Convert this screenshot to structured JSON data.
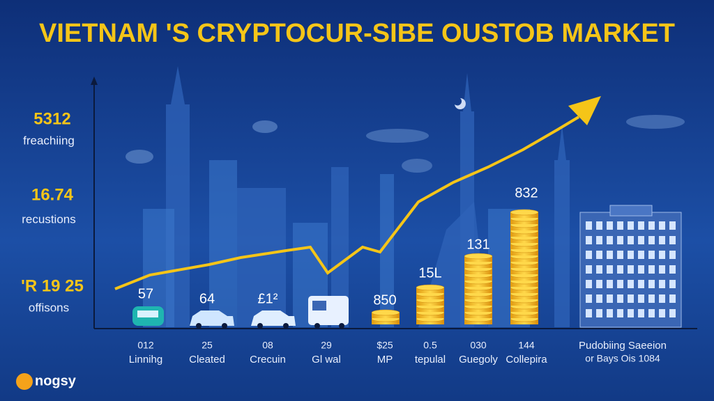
{
  "header": {
    "title": "VIETNAM 'S CRYPTOCUR-SIBE OUSTOB MARKET"
  },
  "stats": [
    {
      "value": "5312",
      "label": "freachiing"
    },
    {
      "value": "16.74",
      "label": "recustions"
    },
    {
      "value": "'R 19 25",
      "label": "offisons"
    }
  ],
  "items": [
    {
      "top": "57",
      "number": "012",
      "label": "Linnihg"
    },
    {
      "top": "64",
      "number": "25",
      "label": "Cleated"
    },
    {
      "top": "£1²",
      "number": "08",
      "label": "Crecuin"
    },
    {
      "number": "29",
      "label": "Gl wal"
    },
    {
      "top": "850",
      "number": "$25",
      "label": "MP"
    },
    {
      "top": "15L",
      "number": "0.5",
      "label": "tepulal"
    },
    {
      "top": "131",
      "number": "030",
      "label": "Guegoly"
    },
    {
      "top": "832",
      "number": "144",
      "label": "Collepira"
    }
  ],
  "caption": {
    "line1": "Pudobiing Saeeion",
    "line2": "or Bays Ois 1084"
  },
  "logo": {
    "text": "nogsy"
  }
}
